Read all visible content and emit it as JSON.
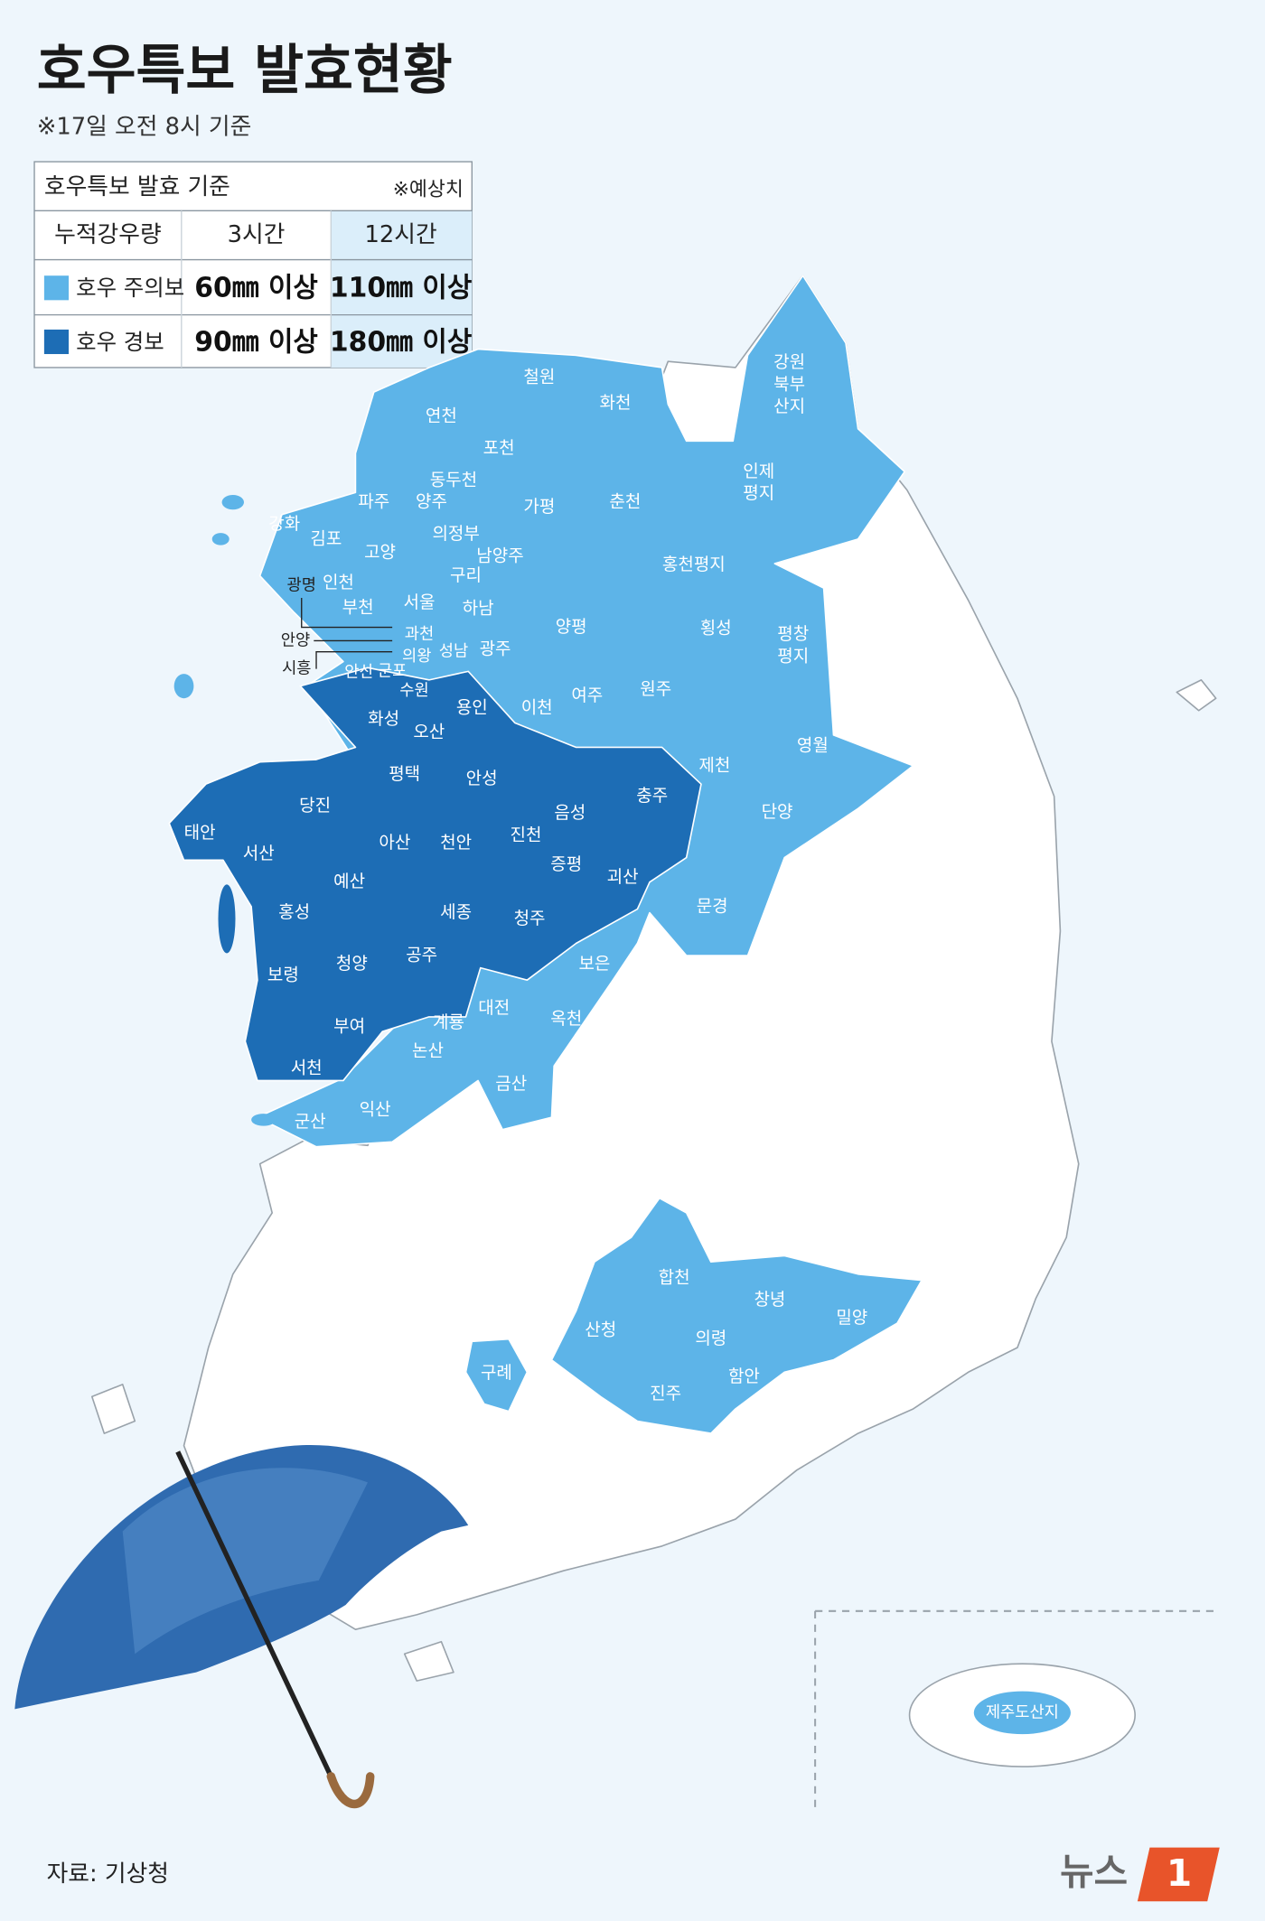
{
  "header": {
    "title": "호우특보 발효현황",
    "subtitle": "※17일 오전 8시 기준"
  },
  "legend_table": {
    "caption": "호우특보 발효 기준",
    "note": "※예상치",
    "columns": [
      "누적강우량",
      "3시간",
      "12시간"
    ],
    "rows": [
      {
        "label": "호우 주의보",
        "color": "#5db4e8",
        "cells": [
          "60㎜ 이상",
          "110㎜ 이상"
        ]
      },
      {
        "label": "호우 경보",
        "color": "#1d6db5",
        "cells": [
          "90㎜ 이상",
          "180㎜ 이상"
        ]
      }
    ]
  },
  "regions": {
    "warning": [
      "태안",
      "서산",
      "당진",
      "홍성",
      "예산",
      "아산",
      "천안",
      "보령",
      "청양",
      "공주",
      "세종",
      "부여",
      "서천",
      "청주",
      "진천",
      "음성",
      "증평",
      "괴산",
      "충주",
      "평택",
      "안성",
      "화성",
      "오산",
      "용인"
    ],
    "advisory": [
      "철원",
      "화천",
      "연천",
      "포천",
      "동두천",
      "파주",
      "양주",
      "가평",
      "춘천",
      "의정부",
      "남양주",
      "강화",
      "김포",
      "고양",
      "인천",
      "구리",
      "서울",
      "하남",
      "부천",
      "과천",
      "의왕",
      "성남",
      "광주",
      "양평",
      "군포",
      "수원",
      "안산",
      "이천",
      "여주",
      "원주",
      "홍천평지",
      "횡성",
      "영월",
      "제천",
      "단양",
      "문경",
      "보은",
      "대전",
      "옥천",
      "계룡",
      "논산",
      "금산",
      "익산",
      "군산",
      "합천",
      "창녕",
      "밀양",
      "산청",
      "의령",
      "함안",
      "진주",
      "구례",
      "제주도산지"
    ],
    "outside_labels": [
      "광명",
      "안양",
      "시흥"
    ],
    "multiline": [
      [
        "강원",
        "북부",
        "산지"
      ],
      [
        "인제",
        "평지"
      ],
      [
        "평창",
        "평지"
      ]
    ]
  },
  "source": "자료: 기상청",
  "logo": {
    "text": "뉴스",
    "mark": "1"
  }
}
